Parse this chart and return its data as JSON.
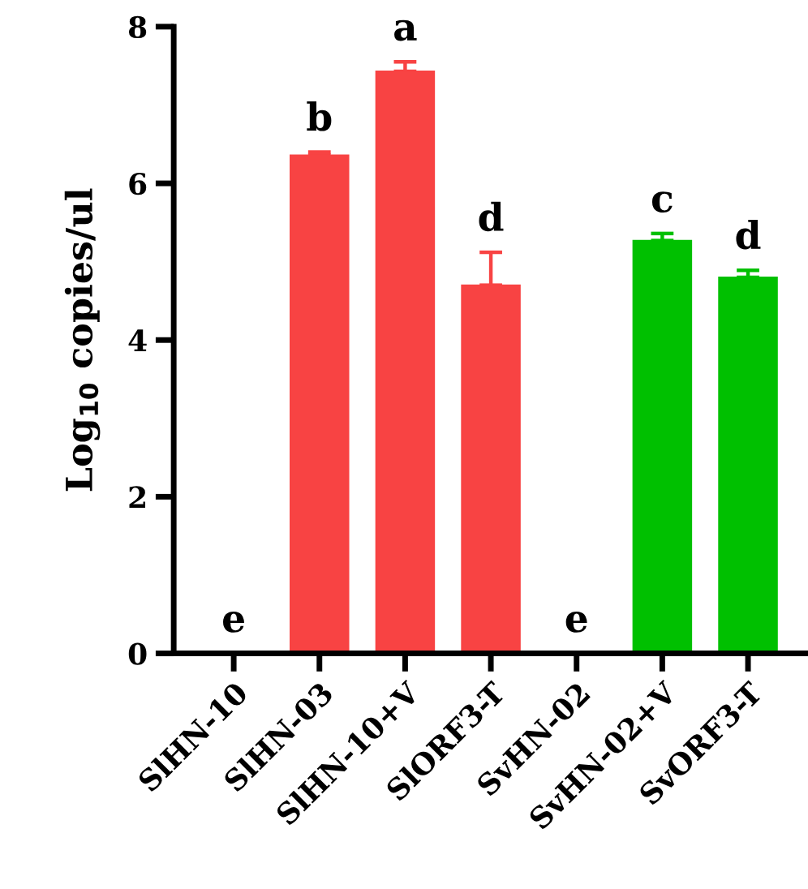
{
  "chart_data": {
    "type": "bar",
    "categories": [
      "SlHN-10",
      "SlHN-03",
      "SlHN-10+V",
      "SlORF3-T",
      "SvHN-02",
      "SvHN-02+V",
      "SvORF3-T"
    ],
    "values": [
      0,
      6.36,
      7.43,
      4.7,
      0,
      5.27,
      4.8
    ],
    "colors": [
      "#f84343",
      "#f84343",
      "#f84343",
      "#f84343",
      "#00c000",
      "#00c000",
      "#00c000"
    ],
    "errors": [
      null,
      [
        6.36,
        6.4
      ],
      [
        7.43,
        7.55
      ],
      [
        4.7,
        5.12
      ],
      null,
      [
        5.27,
        5.36
      ],
      [
        4.8,
        4.89
      ]
    ],
    "ylabel": "Log$_{10}$ copies/ul",
    "ylim": [
      0,
      8
    ],
    "yticks": [
      0,
      2,
      4,
      6,
      8
    ],
    "grid": false,
    "annotations": [
      "e",
      "b",
      "a",
      "d",
      "e",
      "c",
      "d"
    ]
  }
}
